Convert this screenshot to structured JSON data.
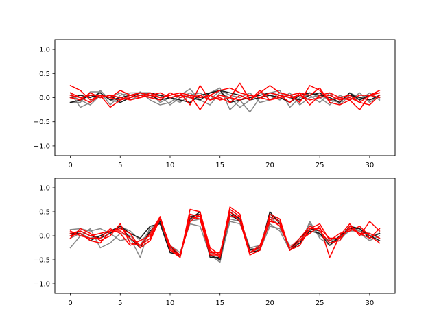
{
  "colors": {
    "gray": "#808080",
    "black": "#1a1a1a",
    "red": "#ff0000"
  },
  "chart_data": [
    {
      "type": "line",
      "xlim": [
        -1.55,
        32.55
      ],
      "ylim": [
        -1.2,
        1.2
      ],
      "xticks": [
        0,
        5,
        10,
        15,
        20,
        25,
        30
      ],
      "yticks": [
        -1.0,
        -0.5,
        0.0,
        0.5,
        1.0
      ],
      "xtick_labels": [
        "0",
        "5",
        "10",
        "15",
        "20",
        "25",
        "30"
      ],
      "ytick_labels": [
        "−1.0",
        "−0.5",
        "0.0",
        "0.5",
        "1.0"
      ],
      "grid": false,
      "series": [
        {
          "color": "gray",
          "values": [
            0.1,
            -0.2,
            -0.1,
            0.15,
            -0.05,
            -0.1,
            0.0,
            0.12,
            -0.05,
            -0.15,
            -0.1,
            0.05,
            0.18,
            -0.05,
            0.1,
            0.2,
            -0.25,
            -0.05,
            -0.3,
            0.0,
            0.1,
            0.15,
            -0.2,
            0.0,
            0.05,
            -0.1,
            0.1,
            -0.15,
            0.05,
            -0.05,
            0.1,
            -0.05
          ]
        },
        {
          "color": "gray",
          "values": [
            -0.1,
            -0.1,
            0.12,
            0.12,
            -0.15,
            0.05,
            0.1,
            0.1,
            0.0,
            0.05,
            -0.15,
            0.0,
            0.1,
            -0.05,
            -0.15,
            0.1,
            0.0,
            -0.2,
            -0.05,
            0.1,
            0.05,
            -0.05,
            0.1,
            -0.15,
            0.0,
            0.05,
            -0.05,
            -0.1,
            0.1,
            0.0,
            0.05,
            0.0
          ]
        },
        {
          "color": "gray",
          "values": [
            0.05,
            -0.05,
            -0.15,
            0.05,
            0.0,
            0.1,
            -0.05,
            0.05,
            0.1,
            -0.1,
            0.0,
            -0.1,
            0.05,
            0.1,
            -0.05,
            0.15,
            0.05,
            0.0,
            0.1,
            -0.1,
            -0.05,
            0.1,
            0.05,
            -0.05,
            0.1,
            0.0,
            -0.15,
            0.05,
            -0.05,
            0.1,
            -0.1,
            0.05
          ]
        },
        {
          "color": "black",
          "values": [
            0.0,
            0.05,
            0.0,
            0.1,
            -0.05,
            0.0,
            0.05,
            0.1,
            0.05,
            -0.05,
            0.0,
            0.05,
            0.0,
            -0.05,
            0.1,
            0.15,
            0.1,
            0.05,
            -0.05,
            0.0,
            0.05,
            0.0,
            -0.1,
            0.05,
            0.1,
            0.05,
            0.0,
            -0.1,
            0.1,
            -0.05,
            0.05,
            0.0
          ]
        },
        {
          "color": "black",
          "values": [
            -0.1,
            -0.05,
            0.05,
            0.0,
            0.05,
            -0.1,
            0.0,
            0.1,
            0.1,
            0.05,
            0.0,
            -0.05,
            -0.1,
            0.05,
            0.1,
            0.15,
            -0.1,
            -0.05,
            0.0,
            0.05,
            0.1,
            0.05,
            0.0,
            -0.05,
            0.05,
            0.1,
            -0.05,
            0.0,
            0.05,
            0.0,
            -0.05,
            0.05
          ]
        },
        {
          "color": "red",
          "values": [
            0.25,
            0.15,
            -0.05,
            0.05,
            -0.2,
            -0.05,
            0.05,
            0.0,
            0.1,
            0.0,
            0.05,
            0.1,
            -0.15,
            0.25,
            -0.05,
            0.05,
            0.0,
            0.3,
            -0.05,
            0.1,
            0.25,
            0.1,
            0.05,
            -0.1,
            0.25,
            0.15,
            -0.05,
            0.0,
            0.05,
            -0.1,
            0.05,
            0.1
          ]
        },
        {
          "color": "red",
          "values": [
            0.1,
            0.0,
            0.05,
            0.05,
            0.0,
            0.15,
            0.05,
            0.1,
            0.05,
            0.0,
            0.05,
            0.1,
            0.05,
            -0.25,
            0.05,
            0.15,
            0.2,
            0.1,
            0.05,
            0.0,
            0.1,
            0.05,
            -0.1,
            0.1,
            -0.15,
            0.05,
            0.1,
            0.0,
            -0.05,
            0.05,
            0.05,
            0.0
          ]
        },
        {
          "color": "red",
          "values": [
            0.0,
            -0.05,
            0.1,
            0.0,
            0.05,
            0.0,
            -0.05,
            0.0,
            0.05,
            0.1,
            0.0,
            0.05,
            0.0,
            0.05,
            -0.05,
            0.0,
            -0.1,
            0.05,
            -0.05,
            0.15,
            -0.05,
            0.0,
            0.05,
            0.1,
            0.05,
            0.2,
            -0.1,
            -0.15,
            -0.05,
            -0.25,
            0.05,
            0.15
          ]
        },
        {
          "color": "red",
          "values": [
            0.05,
            0.0,
            -0.1,
            0.05,
            0.0,
            -0.05,
            0.0,
            0.05,
            0.0,
            -0.05,
            0.1,
            0.0,
            0.05,
            0.0,
            0.05,
            -0.05,
            0.0,
            -0.05,
            0.05,
            0.0,
            -0.05,
            0.05,
            0.0,
            0.05,
            -0.05,
            0.0,
            0.05,
            -0.05,
            0.0,
            -0.1,
            -0.15,
            0.05
          ]
        }
      ]
    },
    {
      "type": "line",
      "xlim": [
        -1.55,
        32.55
      ],
      "ylim": [
        -1.2,
        1.2
      ],
      "xticks": [
        0,
        5,
        10,
        15,
        20,
        25,
        30
      ],
      "yticks": [
        -1.0,
        -0.5,
        0.0,
        0.5,
        1.0
      ],
      "xtick_labels": [
        "0",
        "5",
        "10",
        "15",
        "20",
        "25",
        "30"
      ],
      "ytick_labels": [
        "−1.0",
        "−0.5",
        "0.0",
        "0.5",
        "1.0"
      ],
      "grid": false,
      "series": [
        {
          "color": "gray",
          "values": [
            0.13,
            0.15,
            0.1,
            0.15,
            0.05,
            -0.1,
            -0.05,
            -0.45,
            0.2,
            0.25,
            -0.2,
            -0.35,
            0.25,
            0.2,
            -0.4,
            -0.5,
            0.3,
            0.25,
            -0.25,
            -0.2,
            0.25,
            0.1,
            -0.3,
            -0.2,
            0.3,
            -0.05,
            -0.2,
            -0.05,
            0.2,
            0.1,
            0.0,
            0.05
          ]
        },
        {
          "color": "gray",
          "values": [
            -0.25,
            0.0,
            0.15,
            -0.25,
            -0.15,
            0.05,
            0.0,
            -0.2,
            0.15,
            0.3,
            -0.25,
            -0.4,
            0.3,
            0.35,
            -0.4,
            -0.55,
            0.35,
            0.3,
            -0.3,
            -0.25,
            0.4,
            0.2,
            -0.25,
            -0.1,
            0.15,
            0.05,
            -0.15,
            -0.1,
            0.15,
            0.05,
            -0.1,
            0.0
          ]
        },
        {
          "color": "gray",
          "values": [
            -0.05,
            0.05,
            -0.05,
            0.0,
            0.1,
            0.2,
            0.1,
            -0.1,
            0.05,
            0.3,
            -0.3,
            -0.4,
            0.35,
            0.4,
            -0.35,
            -0.4,
            0.4,
            0.35,
            -0.25,
            -0.3,
            0.2,
            0.15,
            -0.2,
            -0.15,
            0.25,
            0.0,
            -0.1,
            -0.05,
            0.1,
            0.1,
            0.05,
            -0.05
          ]
        },
        {
          "color": "black",
          "values": [
            0.0,
            0.1,
            0.0,
            -0.05,
            0.05,
            0.2,
            -0.05,
            -0.25,
            0.1,
            0.3,
            -0.2,
            -0.45,
            0.4,
            0.45,
            -0.45,
            -0.45,
            0.45,
            0.3,
            -0.35,
            -0.3,
            0.5,
            0.25,
            -0.3,
            -0.15,
            0.1,
            0.05,
            -0.2,
            0.0,
            0.15,
            0.15,
            0.0,
            -0.1
          ]
        },
        {
          "color": "black",
          "values": [
            0.05,
            0.05,
            -0.1,
            0.0,
            0.1,
            0.2,
            0.05,
            -0.05,
            0.2,
            0.25,
            -0.35,
            -0.4,
            0.35,
            0.5,
            -0.4,
            -0.5,
            0.5,
            0.35,
            -0.3,
            -0.25,
            0.45,
            0.3,
            -0.3,
            -0.05,
            0.15,
            0.1,
            -0.15,
            -0.05,
            0.2,
            0.15,
            -0.05,
            0.05
          ]
        },
        {
          "color": "red",
          "values": [
            -0.05,
            0.15,
            0.05,
            -0.1,
            0.0,
            0.25,
            -0.15,
            -0.2,
            -0.05,
            0.4,
            -0.25,
            -0.45,
            0.55,
            0.5,
            -0.25,
            -0.4,
            0.6,
            0.45,
            -0.4,
            -0.3,
            0.45,
            0.35,
            -0.3,
            -0.2,
            0.15,
            0.25,
            -0.1,
            0.05,
            0.1,
            0.2,
            0.0,
            -0.15
          ]
        },
        {
          "color": "red",
          "values": [
            0.05,
            0.1,
            0.0,
            0.05,
            0.1,
            0.15,
            0.05,
            -0.25,
            -0.1,
            0.35,
            -0.2,
            -0.4,
            0.3,
            0.45,
            -0.3,
            -0.45,
            0.55,
            0.4,
            -0.35,
            -0.25,
            0.4,
            0.3,
            -0.3,
            -0.1,
            0.05,
            0.2,
            -0.45,
            0.0,
            0.25,
            0.0,
            0.3,
            0.1
          ]
        },
        {
          "color": "red",
          "values": [
            0.0,
            0.05,
            -0.1,
            -0.15,
            0.1,
            0.1,
            -0.05,
            -0.2,
            0.05,
            0.4,
            -0.3,
            -0.4,
            0.45,
            0.4,
            -0.35,
            -0.35,
            0.4,
            0.4,
            -0.35,
            -0.2,
            0.35,
            0.2,
            -0.25,
            -0.05,
            0.2,
            0.1,
            -0.15,
            -0.1,
            0.2,
            0.05,
            0.05,
            -0.05
          ]
        },
        {
          "color": "red",
          "values": [
            0.1,
            0.0,
            -0.05,
            -0.05,
            0.15,
            0.05,
            -0.2,
            -0.1,
            0.0,
            0.35,
            -0.3,
            -0.45,
            0.4,
            0.35,
            -0.4,
            -0.4,
            0.5,
            0.3,
            -0.4,
            -0.3,
            0.3,
            0.25,
            -0.3,
            -0.1,
            0.15,
            0.15,
            -0.05,
            -0.05,
            0.15,
            0.05,
            -0.05,
            0.15
          ]
        }
      ]
    }
  ]
}
